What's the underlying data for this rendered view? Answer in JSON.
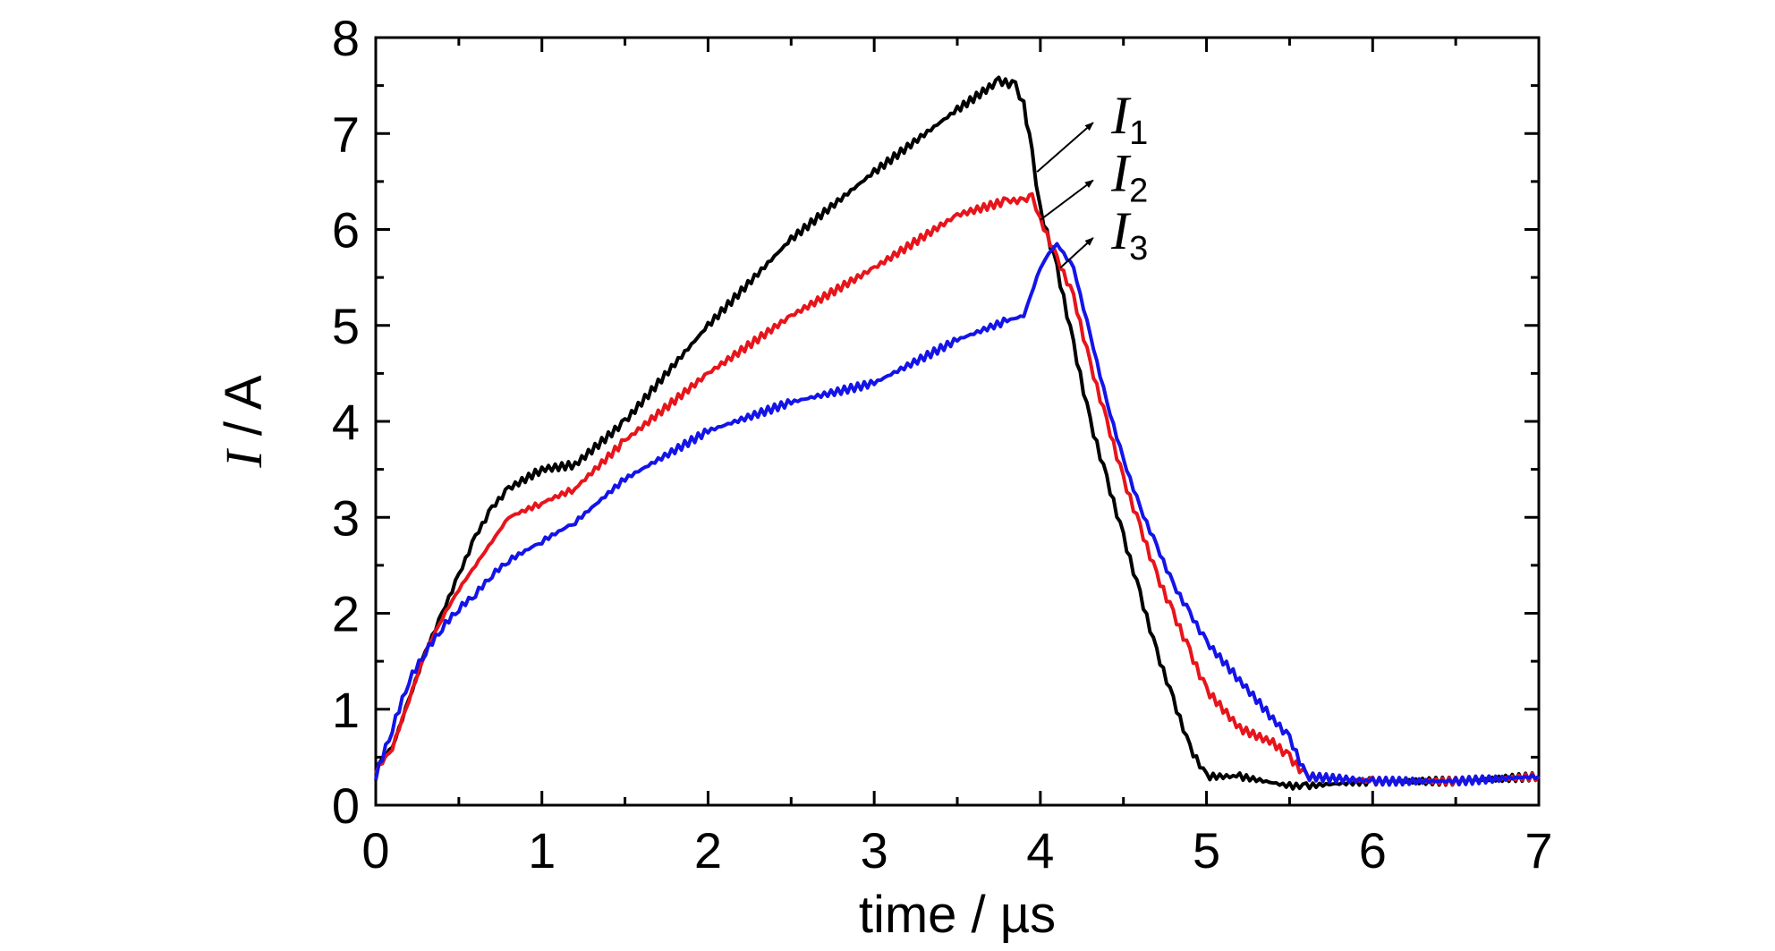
{
  "chart_data": {
    "type": "line",
    "xlabel": "time / µs",
    "ylabel_italic": "I",
    "ylabel_rest": " / A",
    "xlim": [
      0,
      7
    ],
    "ylim": [
      0,
      8
    ],
    "xticks": [
      0,
      1,
      2,
      3,
      4,
      5,
      6,
      7
    ],
    "yticks": [
      0,
      1,
      2,
      3,
      4,
      5,
      6,
      7,
      8
    ],
    "grid": false,
    "legend": "annotations near peaks with arrows",
    "series": [
      {
        "name": "I1",
        "label_main": "I",
        "label_sub": "1",
        "color": "#000000",
        "x": [
          0.0,
          0.1,
          0.2,
          0.3,
          0.4,
          0.5,
          0.6,
          0.7,
          0.8,
          1.0,
          1.2,
          1.5,
          2.0,
          2.5,
          3.0,
          3.5,
          3.75,
          3.85,
          3.9,
          3.95,
          4.0,
          4.1,
          4.2,
          4.3,
          4.4,
          4.5,
          4.6,
          4.7,
          4.8,
          4.9,
          5.0,
          5.2,
          5.5,
          5.6,
          6.0,
          6.5,
          7.0
        ],
        "y": [
          0.4,
          0.6,
          1.1,
          1.6,
          2.0,
          2.4,
          2.8,
          3.1,
          3.3,
          3.5,
          3.55,
          4.0,
          5.0,
          5.9,
          6.6,
          7.25,
          7.55,
          7.5,
          7.3,
          6.8,
          6.2,
          5.6,
          4.8,
          4.0,
          3.4,
          2.8,
          2.2,
          1.6,
          1.1,
          0.6,
          0.3,
          0.3,
          0.2,
          0.2,
          0.25,
          0.25,
          0.3
        ]
      },
      {
        "name": "I2",
        "label_main": "I",
        "label_sub": "2",
        "color": "#e8141b",
        "x": [
          0.0,
          0.1,
          0.2,
          0.3,
          0.4,
          0.5,
          0.6,
          0.7,
          0.8,
          1.0,
          1.2,
          1.5,
          2.0,
          2.5,
          3.0,
          3.5,
          3.8,
          3.9,
          3.95,
          4.0,
          4.1,
          4.2,
          4.3,
          4.4,
          4.5,
          4.6,
          4.7,
          4.8,
          4.9,
          5.0,
          5.2,
          5.4,
          5.5,
          5.6,
          6.0,
          6.5,
          7.0
        ],
        "y": [
          0.35,
          0.6,
          1.1,
          1.6,
          1.95,
          2.25,
          2.5,
          2.75,
          3.0,
          3.15,
          3.3,
          3.8,
          4.5,
          5.1,
          5.6,
          6.15,
          6.3,
          6.3,
          6.35,
          6.1,
          5.7,
          5.3,
          4.6,
          4.0,
          3.4,
          2.9,
          2.4,
          2.0,
          1.6,
          1.2,
          0.8,
          0.65,
          0.5,
          0.3,
          0.25,
          0.25,
          0.3
        ]
      },
      {
        "name": "I3",
        "label_main": "I",
        "label_sub": "3",
        "color": "#1414e8",
        "x": [
          0.0,
          0.1,
          0.2,
          0.3,
          0.4,
          0.5,
          0.6,
          0.7,
          0.8,
          1.0,
          1.2,
          1.5,
          2.0,
          2.5,
          3.0,
          3.5,
          3.8,
          3.9,
          4.0,
          4.05,
          4.1,
          4.2,
          4.3,
          4.4,
          4.5,
          4.6,
          4.7,
          4.8,
          4.9,
          5.0,
          5.2,
          5.4,
          5.5,
          5.6,
          6.0,
          6.5,
          7.0
        ],
        "y": [
          0.3,
          0.8,
          1.3,
          1.6,
          1.85,
          2.05,
          2.2,
          2.4,
          2.55,
          2.75,
          2.95,
          3.4,
          3.9,
          4.2,
          4.4,
          4.85,
          5.05,
          5.1,
          5.6,
          5.75,
          5.85,
          5.6,
          4.9,
          4.2,
          3.6,
          3.1,
          2.7,
          2.3,
          2.0,
          1.7,
          1.3,
          0.9,
          0.7,
          0.3,
          0.25,
          0.25,
          0.3
        ]
      }
    ]
  }
}
